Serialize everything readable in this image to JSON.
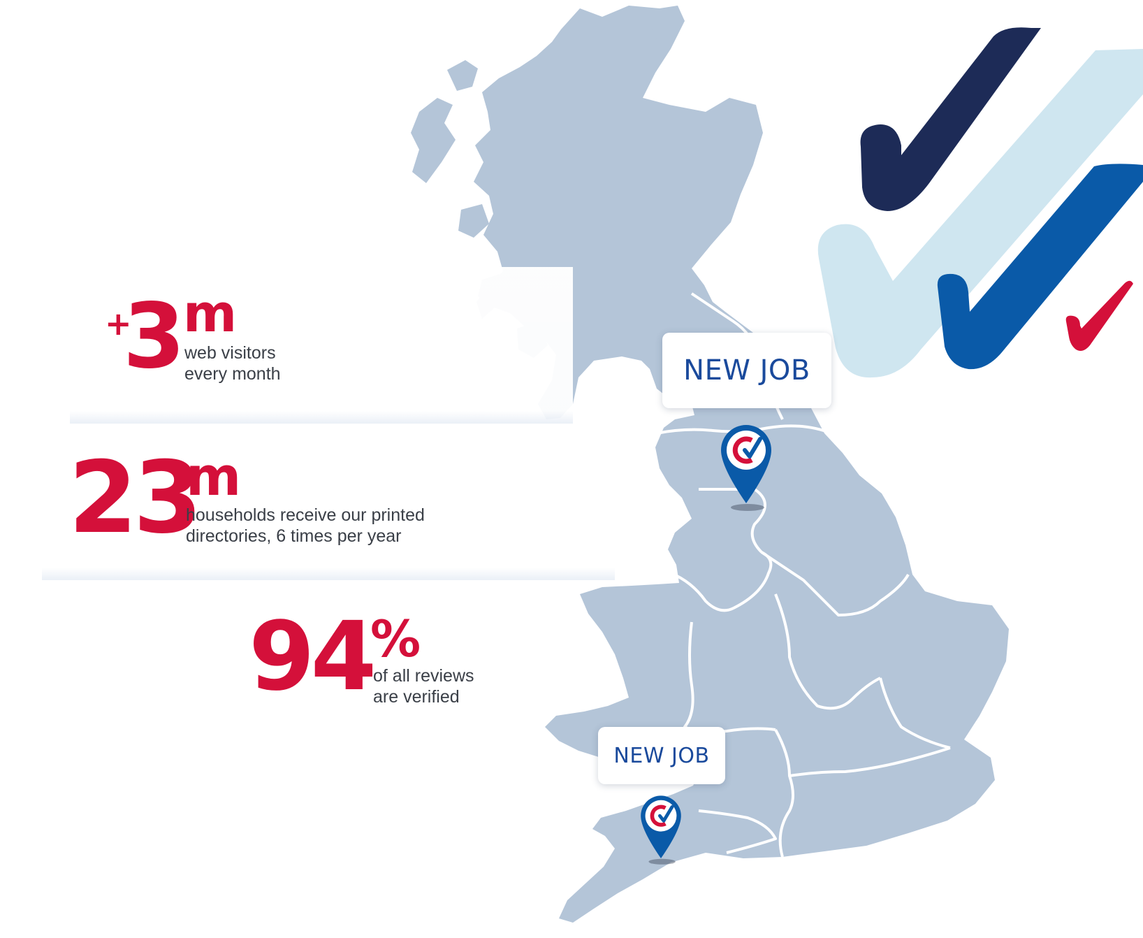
{
  "stats": [
    {
      "prefix": "+",
      "number": "3",
      "suffix": "m",
      "description_line1": "web visitors",
      "description_line2": "every month"
    },
    {
      "prefix": "",
      "number": "23",
      "suffix": "m",
      "description_line1": "households receive our printed",
      "description_line2": "directories, 6 times per year"
    },
    {
      "prefix": "",
      "number": "94",
      "suffix": "%",
      "description_line1": "of all reviews",
      "description_line2": "are verified"
    }
  ],
  "job_markers": [
    {
      "label": "NEW JOB",
      "icon": "checkatrade-pin-icon"
    },
    {
      "label": "NEW JOB",
      "icon": "checkatrade-pin-icon"
    }
  ],
  "decor": {
    "ticks": [
      "navy-tick-icon",
      "light-blue-tick-icon",
      "blue-tick-icon",
      "red-tick-icon"
    ]
  },
  "colors": {
    "accent_red": "#d4103a",
    "map_fill": "#b4c5d8",
    "navy": "#1d2b57",
    "light_blue": "#cfe6f0",
    "brand_blue": "#0a5aa8",
    "text_dark": "#3a3f47",
    "job_text": "#1a4a9c"
  }
}
